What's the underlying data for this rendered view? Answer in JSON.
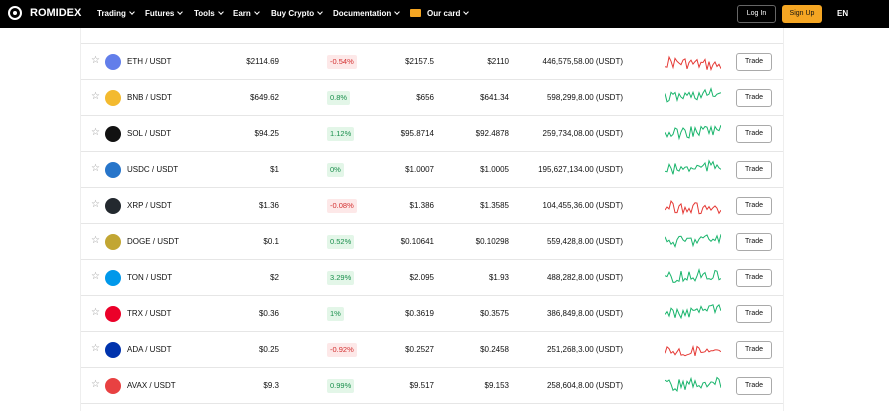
{
  "nav": {
    "brand": "ROMIDEX",
    "items": [
      "Trading",
      "Futures",
      "Tools",
      "Earn",
      "Buy Crypto",
      "Documentation"
    ],
    "card": "Our card",
    "login": "Log In",
    "signup": "Sign Up",
    "lang": "EN"
  },
  "table": {
    "trade_label": "Trade",
    "rows": [
      {
        "pair": "ETH / USDT",
        "price": "$2114.69",
        "change": "-0.54%",
        "high": "$2157.5",
        "low": "$2110",
        "volume": "446,575,58.00 (USDT)",
        "icon_color": "#627eea",
        "spark_color": "#e53935"
      },
      {
        "pair": "BNB / USDT",
        "price": "$649.62",
        "change": "0.8%",
        "high": "$656",
        "low": "$641.34",
        "volume": "598,299,8.00 (USDT)",
        "icon_color": "#f3ba2f",
        "spark_color": "#18b46b"
      },
      {
        "pair": "SOL / USDT",
        "price": "$94.25",
        "change": "1.12%",
        "high": "$95.8714",
        "low": "$92.4878",
        "volume": "259,734,08.00 (USDT)",
        "icon_color": "#111111",
        "spark_color": "#18b46b"
      },
      {
        "pair": "USDC / USDT",
        "price": "$1",
        "change": "0%",
        "high": "$1.0007",
        "low": "$1.0005",
        "volume": "195,627,134.00 (USDT)",
        "icon_color": "#2775ca",
        "spark_color": "#18b46b"
      },
      {
        "pair": "XRP / USDT",
        "price": "$1.36",
        "change": "-0.08%",
        "high": "$1.386",
        "low": "$1.3585",
        "volume": "104,455,36.00 (USDT)",
        "icon_color": "#23292f",
        "spark_color": "#e53935"
      },
      {
        "pair": "DOGE / USDT",
        "price": "$0.1",
        "change": "0.52%",
        "high": "$0.10641",
        "low": "$0.10298",
        "volume": "559,428,8.00 (USDT)",
        "icon_color": "#c2a633",
        "spark_color": "#18b46b"
      },
      {
        "pair": "TON / USDT",
        "price": "$2",
        "change": "3.29%",
        "high": "$2.095",
        "low": "$1.93",
        "volume": "488,282,8.00 (USDT)",
        "icon_color": "#0098ea",
        "spark_color": "#18b46b"
      },
      {
        "pair": "TRX / USDT",
        "price": "$0.36",
        "change": "1%",
        "high": "$0.3619",
        "low": "$0.3575",
        "volume": "386,849,8.00 (USDT)",
        "icon_color": "#eb0029",
        "spark_color": "#18b46b"
      },
      {
        "pair": "ADA / USDT",
        "price": "$0.25",
        "change": "-0.92%",
        "high": "$0.2527",
        "low": "$0.2458",
        "volume": "251,268,3.00 (USDT)",
        "icon_color": "#0033ad",
        "spark_color": "#e53935"
      },
      {
        "pair": "AVAX / USDT",
        "price": "$9.3",
        "change": "0.99%",
        "high": "$9.517",
        "low": "$9.153",
        "volume": "258,604,8.00 (USDT)",
        "icon_color": "#e84142",
        "spark_color": "#18b46b"
      }
    ]
  }
}
